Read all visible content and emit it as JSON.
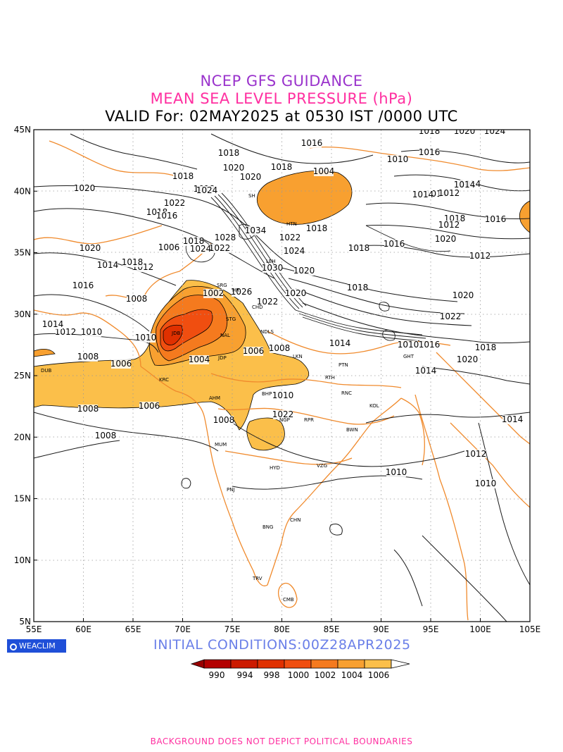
{
  "titles": {
    "line1": "NCEP GFS GUIDANCE",
    "line2": "MEAN SEA LEVEL PRESSURE (hPa)",
    "line3": "VALID For: 02MAY2025 at 0530 IST /0000 UTC"
  },
  "axes": {
    "lat_labels": [
      "45N",
      "40N",
      "35N",
      "30N",
      "25N",
      "20N",
      "15N",
      "10N",
      "5N"
    ],
    "lon_labels": [
      "55E",
      "60E",
      "65E",
      "70E",
      "75E",
      "80E",
      "85E",
      "90E",
      "95E",
      "100E",
      "105E"
    ]
  },
  "logo": "WEACLIM",
  "initial_conditions": "INITIAL CONDITIONS:00Z28APR2025",
  "colorbar": {
    "labels": [
      "990",
      "994",
      "998",
      "1000",
      "1002",
      "1004",
      "1006"
    ],
    "colors": [
      "#b30000",
      "#cc1a00",
      "#e03000",
      "#f04e10",
      "#f57a1e",
      "#f8a030",
      "#fbbf4a"
    ]
  },
  "footer": "BACKGROUND DOES NOT DEPICT POLITICAL BOUNDARIES",
  "contour_labels": [
    {
      "text": "1018"
    },
    {
      "text": "1020"
    },
    {
      "text": "1024"
    },
    {
      "text": "1018"
    },
    {
      "text": "1016"
    },
    {
      "text": "1018"
    },
    {
      "text": "1004"
    },
    {
      "text": "1016"
    },
    {
      "text": "1010"
    },
    {
      "text": "1014"
    },
    {
      "text": "1018"
    },
    {
      "text": "1020"
    },
    {
      "text": "1018"
    },
    {
      "text": "1020"
    },
    {
      "text": "1024"
    },
    {
      "text": "1022"
    },
    {
      "text": "1018"
    },
    {
      "text": "1016"
    },
    {
      "text": "1020"
    },
    {
      "text": "1014"
    },
    {
      "text": "1018"
    },
    {
      "text": "1012"
    },
    {
      "text": "1016"
    },
    {
      "text": "1008"
    },
    {
      "text": "1002"
    },
    {
      "text": "1020"
    },
    {
      "text": "1018"
    },
    {
      "text": "1022"
    },
    {
      "text": "1024"
    },
    {
      "text": "1020"
    },
    {
      "text": "1030"
    },
    {
      "text": "1018"
    },
    {
      "text": "1022"
    },
    {
      "text": "1020"
    },
    {
      "text": "1014"
    },
    {
      "text": "1012"
    },
    {
      "text": "1010"
    },
    {
      "text": "1004"
    },
    {
      "text": "1006"
    },
    {
      "text": "1008"
    },
    {
      "text": "1006"
    },
    {
      "text": "1008"
    },
    {
      "text": "1008"
    },
    {
      "text": "1006"
    },
    {
      "text": "1010"
    },
    {
      "text": "1008"
    },
    {
      "text": "1008"
    },
    {
      "text": "1010"
    },
    {
      "text": "1012"
    },
    {
      "text": "1010"
    },
    {
      "text": "1014"
    },
    {
      "text": "1016"
    },
    {
      "text": "1014"
    },
    {
      "text": "1012"
    },
    {
      "text": "1020"
    },
    {
      "text": "1018"
    },
    {
      "text": "1016"
    },
    {
      "text": "1014"
    },
    {
      "text": "1012"
    },
    {
      "text": "1010"
    },
    {
      "text": "1014"
    },
    {
      "text": "1020"
    },
    {
      "text": "1022"
    },
    {
      "text": "1018"
    },
    {
      "text": "1014"
    },
    {
      "text": "1020"
    },
    {
      "text": "1018"
    },
    {
      "text": "1016"
    },
    {
      "text": "1014"
    },
    {
      "text": "1012"
    },
    {
      "text": "1010"
    },
    {
      "text": "1018"
    },
    {
      "text": "1034"
    },
    {
      "text": "1022"
    },
    {
      "text": "1024"
    },
    {
      "text": "1028"
    },
    {
      "text": "1026"
    },
    {
      "text": "1022"
    },
    {
      "text": "1006"
    }
  ],
  "cities": [
    "SH",
    "HTN",
    "LEH",
    "SRG",
    "HR",
    "CHD",
    "STG",
    "JDB",
    "NAL",
    "NDLS",
    "LKN",
    "JDP",
    "DUB",
    "KRC",
    "AHM",
    "BHP",
    "NGP",
    "RPR",
    "PTN",
    "RTH",
    "RNC",
    "KOL",
    "BWN",
    "GHT",
    "MUM",
    "HYD",
    "VZG",
    "PNJ",
    "BNG",
    "CHN",
    "TRV",
    "CMB"
  ]
}
